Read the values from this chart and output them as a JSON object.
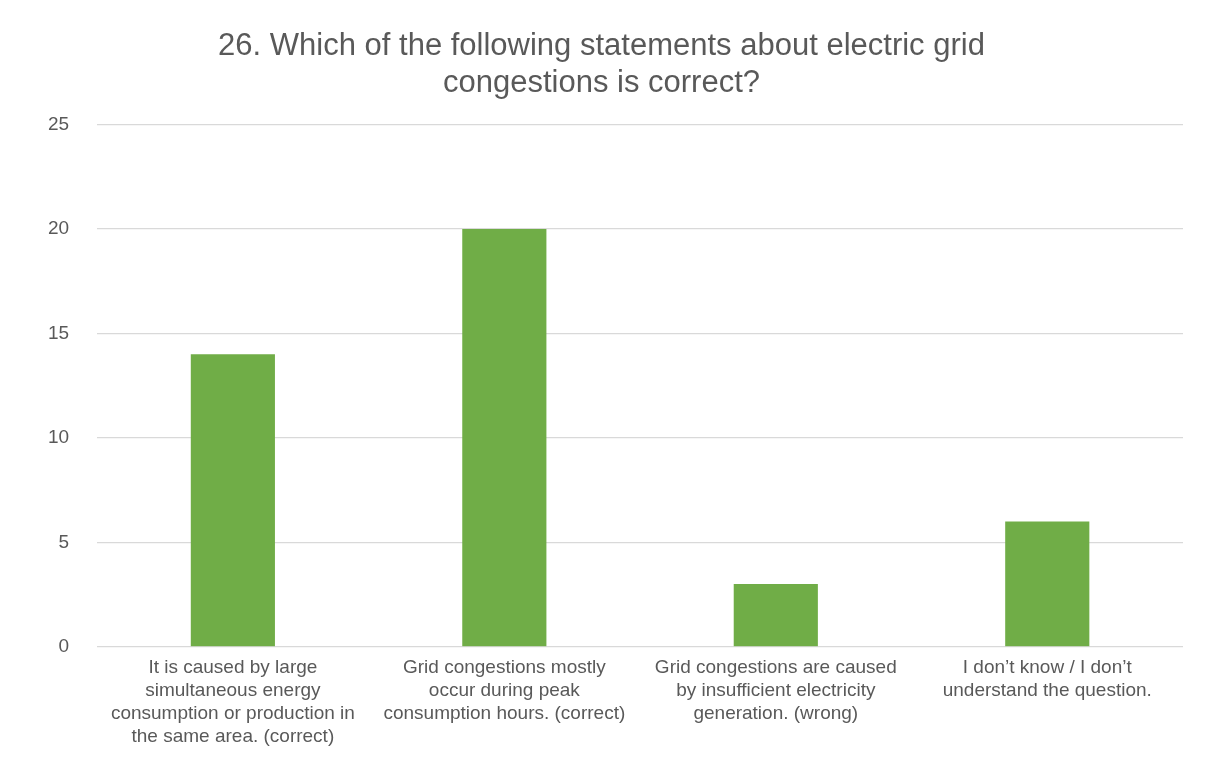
{
  "chart_data": {
    "type": "bar",
    "title": "26. Which of the following statements about electric grid congestions is correct?",
    "categories": [
      "It is caused by large simultaneous energy consumption or production in the same area. (correct)",
      "Grid congestions mostly occur during peak consumption hours. (correct)",
      "Grid congestions are caused by insufficient electricity generation. (wrong)",
      "I don’t know / I don’t understand the question."
    ],
    "values": [
      14,
      20,
      3,
      6
    ],
    "color": "#70ad47",
    "ylim": [
      0,
      25
    ],
    "yticks": [
      0,
      5,
      10,
      15,
      20,
      25
    ],
    "grid": "y",
    "legend": false
  }
}
